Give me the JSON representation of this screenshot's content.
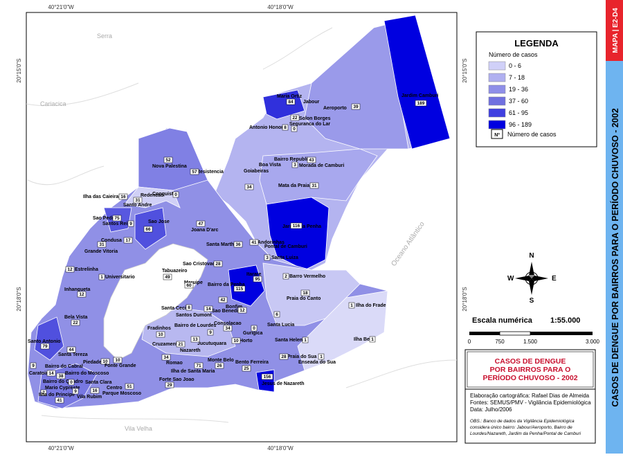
{
  "map": {
    "coords": {
      "top_left": "40°21'0\"W",
      "top_mid": "40°18'0\"W",
      "bottom_left": "40°21'0\"W",
      "bottom_mid": "40°18'0\"W",
      "left_top": "20°15'0\"S",
      "left_bottom": "20°18'0\"S",
      "right_top": "20°15'0\"S",
      "right_bottom": "20°18'0\"S"
    },
    "places": [
      "Serra",
      "Cariacica",
      "Vila Velha",
      "Oceano Atlântico"
    ],
    "neighborhoods": [
      {
        "name": "Maria Ortiz",
        "cases": 84
      },
      {
        "name": "Jabour"
      },
      {
        "name": "Aeroporto",
        "cases": 39
      },
      {
        "name": "Solon Borges",
        "cases": 22
      },
      {
        "name": "Seguranca do Lar",
        "cases": 0
      },
      {
        "name": "Antonio Honorio",
        "cases": 8
      },
      {
        "name": "Jardim Camburi",
        "cases": 189
      },
      {
        "name": "Bairro Republica",
        "cases": 43
      },
      {
        "name": "Boa Vista",
        "cases": 3
      },
      {
        "name": "Morada de Camburi"
      },
      {
        "name": "Goiabeiras",
        "cases": 34
      },
      {
        "name": "Mata da Praia",
        "cases": 31
      },
      {
        "name": "Jardim da Penha",
        "cases": 116
      },
      {
        "name": "Andorinhas",
        "cases": 41
      },
      {
        "name": "Pontal de Camburi"
      },
      {
        "name": "Santa Luiza",
        "cases": 3
      },
      {
        "name": "Nova Palestina",
        "cases": 52
      },
      {
        "name": "Resistencia",
        "cases": 57
      },
      {
        "name": "Ilha das Caieiras",
        "cases": 16
      },
      {
        "name": "Redencao",
        "cases": 31
      },
      {
        "name": "Conquista",
        "cases": 0
      },
      {
        "name": "Santo Andre"
      },
      {
        "name": "Sao Pedro",
        "cases": 75
      },
      {
        "name": "Santos Reis",
        "cases": 9
      },
      {
        "name": "Sao Jose",
        "cases": 66
      },
      {
        "name": "Joana D'arc",
        "cases": 47
      },
      {
        "name": "Condusa",
        "cases": 17
      },
      {
        "name": "Grande Vitoria",
        "cases": 31
      },
      {
        "name": "Santa Martha",
        "cases": 36
      },
      {
        "name": "Estrelinha",
        "cases": 12
      },
      {
        "name": "Sao Cristovao",
        "cases": 28
      },
      {
        "name": "Tabuazeiro",
        "cases": 49
      },
      {
        "name": "Itarare",
        "cases": 95
      },
      {
        "name": "Maruipe",
        "cases": 60
      },
      {
        "name": "Bairro da Penha",
        "cases": 115
      },
      {
        "name": "Barro Vermelho",
        "cases": 2
      },
      {
        "name": "Universitario",
        "cases": 1
      },
      {
        "name": "Inhangueta",
        "cases": 12
      },
      {
        "name": "Praia do Canto",
        "cases": 18
      },
      {
        "name": "Bonfim",
        "cases": 42
      },
      {
        "name": "Santa Cecilia",
        "cases": 8
      },
      {
        "name": "Sao Benedito",
        "cases": 12
      },
      {
        "name": "Santos Dumont",
        "cases": 14
      },
      {
        "name": "Bela Vista",
        "cases": 22
      },
      {
        "name": "Santa Lucia",
        "cases": 6
      },
      {
        "name": "Ilha do Frade",
        "cases": 1
      },
      {
        "name": "Fradinhos",
        "cases": 10
      },
      {
        "name": "Bairro de Lourdes",
        "cases": 9
      },
      {
        "name": "Consolacao",
        "cases": 34
      },
      {
        "name": "Gurigica",
        "cases": 0
      },
      {
        "name": "Horto",
        "cases": 10
      },
      {
        "name": "Cruzamento",
        "cases": 21
      },
      {
        "name": "Jucutuquara",
        "cases": 13
      },
      {
        "name": "Nazareth"
      },
      {
        "name": "Santa Helena",
        "cases": 1
      },
      {
        "name": "Ilha Bela",
        "cases": 1
      },
      {
        "name": "Santo Antonio",
        "cases": 79
      },
      {
        "name": "Santa Tereza",
        "cases": 44
      },
      {
        "name": "Praia do Sua",
        "cases": 28
      },
      {
        "name": "Enseada do Sua",
        "cases": 1
      },
      {
        "name": "Caratoira",
        "cases": 14
      },
      {
        "name": "Bairro do Cabral",
        "cases": 9
      },
      {
        "name": "Piedade",
        "cases": 10
      },
      {
        "name": "Fonte Grande",
        "cases": 10
      },
      {
        "name": "Romao",
        "cases": 34
      },
      {
        "name": "Monte Belo",
        "cases": 26
      },
      {
        "name": "Bento Ferreira",
        "cases": 25
      },
      {
        "name": "Ilha de Santa Maria",
        "cases": 71
      },
      {
        "name": "Bairro do Moscoso",
        "cases": 38
      },
      {
        "name": "Bairro do Quadro",
        "cases": 0
      },
      {
        "name": "Santa Clara"
      },
      {
        "name": "Mario Cypreste",
        "cases": 2
      },
      {
        "name": "Centro",
        "cases": 16
      },
      {
        "name": "Ilha do Principe",
        "cases": 41
      },
      {
        "name": "Vila Rubim",
        "cases": 9
      },
      {
        "name": "Parque Moscoso",
        "cases": 51
      },
      {
        "name": "Forte Sao Joao",
        "cases": 29
      },
      {
        "name": "Jesus de Nazareth",
        "cases": 156
      }
    ],
    "compass": {
      "n": "N",
      "s": "S",
      "e": "E",
      "w": "W"
    }
  },
  "legend": {
    "title": "LEGENDA",
    "subtitle": "Número de casos",
    "classes": [
      "0 - 6",
      "7 - 18",
      "19 - 36",
      "37 - 60",
      "61 - 95",
      "96 - 189"
    ],
    "box_symbol": "Nº",
    "box_label": "Número de casos"
  },
  "scale": {
    "label": "Escala numérica",
    "ratio": "1:55.000",
    "ticks": [
      "0",
      "750",
      "1.500",
      "3.000"
    ]
  },
  "title_box": {
    "lines": [
      "CASOS DE DENGUE",
      "POR BAIRROS PARA O",
      "PERÍODO CHUVOSO - 2002"
    ]
  },
  "credits": {
    "lines": [
      "Elaboração cartográfica: Rafael Dias de Almeida",
      "Fontes: SEMUS/PMV - Vigilância Epidemiológica",
      "Data: Julho/2006"
    ],
    "obs": [
      "OBS.: Banco de dados da Vigilância Epidemiológica",
      "considera único bairro: Jabour/Aeroporto, Bairro de",
      "Lourdes/Nazareth, Jardim da Penha/Pontal de Camburi"
    ]
  },
  "side": {
    "code": "MAPA | E2-D4",
    "title": "CASOS DE DENGUE POR BAIRROS  PARA O PERÍODO CHUVOSO - 2002"
  }
}
